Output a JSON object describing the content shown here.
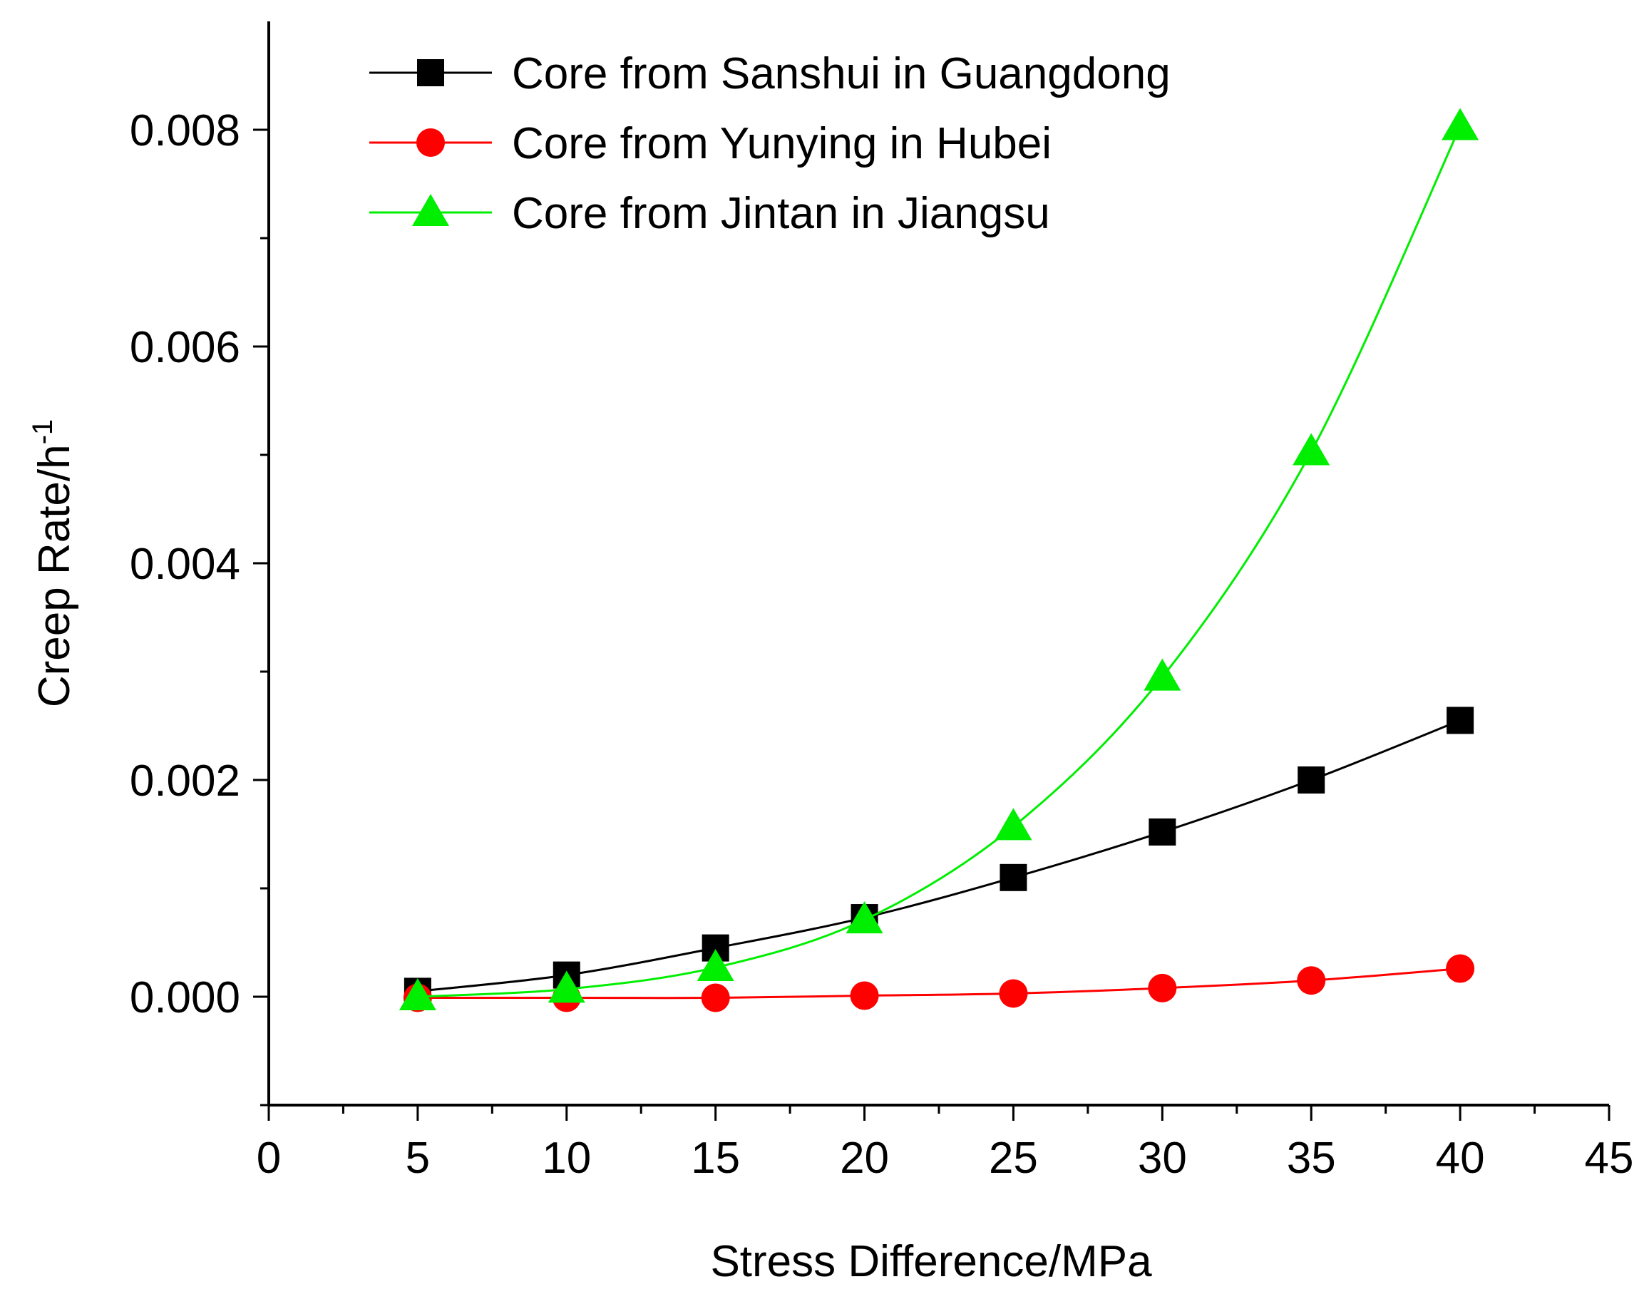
{
  "chart_data": {
    "type": "line",
    "title": "",
    "xlabel": "Stress Difference/MPa",
    "ylabel_main": "Creep Rate/h",
    "ylabel_superscript": "-1",
    "xlim": [
      0,
      45
    ],
    "ylim": [
      -0.001,
      0.009
    ],
    "x_ticks": [
      0,
      5,
      10,
      15,
      20,
      25,
      30,
      35,
      40,
      45
    ],
    "x_tick_labels": [
      "0",
      "5",
      "10",
      "15",
      "20",
      "25",
      "30",
      "35",
      "40",
      "45"
    ],
    "y_ticks": [
      0,
      0.002,
      0.004,
      0.006,
      0.008
    ],
    "y_tick_labels": [
      "0.000",
      "0.002",
      "0.004",
      "0.006",
      "0.008"
    ],
    "grid": false,
    "legend_position": "top-left",
    "x": [
      5,
      10,
      15,
      20,
      25,
      30,
      35,
      40
    ],
    "series": [
      {
        "name": "Core from Sanshui in Guangdong",
        "color": "#000000",
        "marker": "square",
        "values": [
          5e-05,
          0.0002,
          0.00045,
          0.00073,
          0.0011,
          0.00152,
          0.002,
          0.00255
        ]
      },
      {
        "name": "Core from Yunying in Hubei",
        "color": "#ff0000",
        "marker": "circle",
        "values": [
          -1e-05,
          -1e-05,
          -1e-05,
          1e-05,
          3e-05,
          8e-05,
          0.00015,
          0.00026
        ]
      },
      {
        "name": "Core from Jintan in Jiangsu",
        "color": "#00ee00",
        "marker": "triangle",
        "values": [
          0.0,
          7e-05,
          0.00027,
          0.00071,
          0.00157,
          0.00295,
          0.00503,
          0.00803
        ]
      }
    ]
  }
}
